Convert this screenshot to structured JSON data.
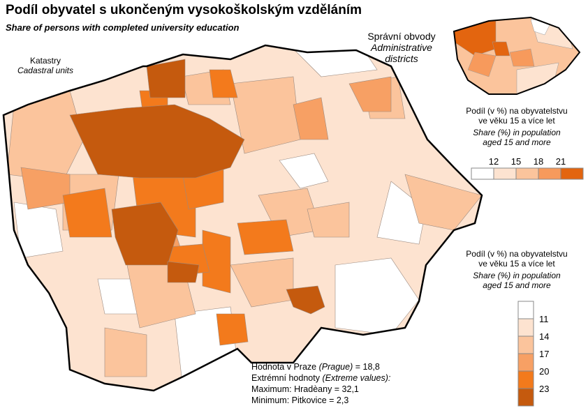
{
  "title": "Podíl obyvatel s ukončeným vysokoškolským vzděláním",
  "subtitle": "Share of persons with completed university education",
  "main_map": {
    "label_cz": "Katastry",
    "label_en": "Cadastral units"
  },
  "inset_map": {
    "label_cz": "Správní obvody",
    "label_en": "Administrative districts"
  },
  "legend_inset": {
    "title_cz_1": "Podíl (v %) na obyvatelstvu",
    "title_cz_2": "ve věku 15 a více let",
    "title_en_1": "Share (%) in population",
    "title_en_2": "aged 15 and more",
    "breaks": [
      "12",
      "15",
      "18",
      "21"
    ],
    "colors": [
      "#ffffff",
      "#fde3d0",
      "#fbc49c",
      "#f79a5c",
      "#e3650f"
    ]
  },
  "legend_main": {
    "title_cz_1": "Podíl (v %) na obyvatelstvu",
    "title_cz_2": "ve věku 15 a více let",
    "title_en_1": "Share (%) in population",
    "title_en_2": "aged 15 and more",
    "breaks": [
      "11",
      "14",
      "17",
      "20",
      "23"
    ],
    "colors": [
      "#ffffff",
      "#fde3d0",
      "#fbc49c",
      "#f7a064",
      "#f37a1c",
      "#c55a0e"
    ]
  },
  "info": {
    "prague_label": "Hodnota v Praze",
    "prague_en": "(Prague)",
    "prague_value": "= 18,8",
    "extreme_label": "Extrémní hodnoty",
    "extreme_en": "(Extreme values):",
    "max": "Maximum: Hradèany = 32,1",
    "min": "Minimum: Pitkovice = 2,3"
  }
}
